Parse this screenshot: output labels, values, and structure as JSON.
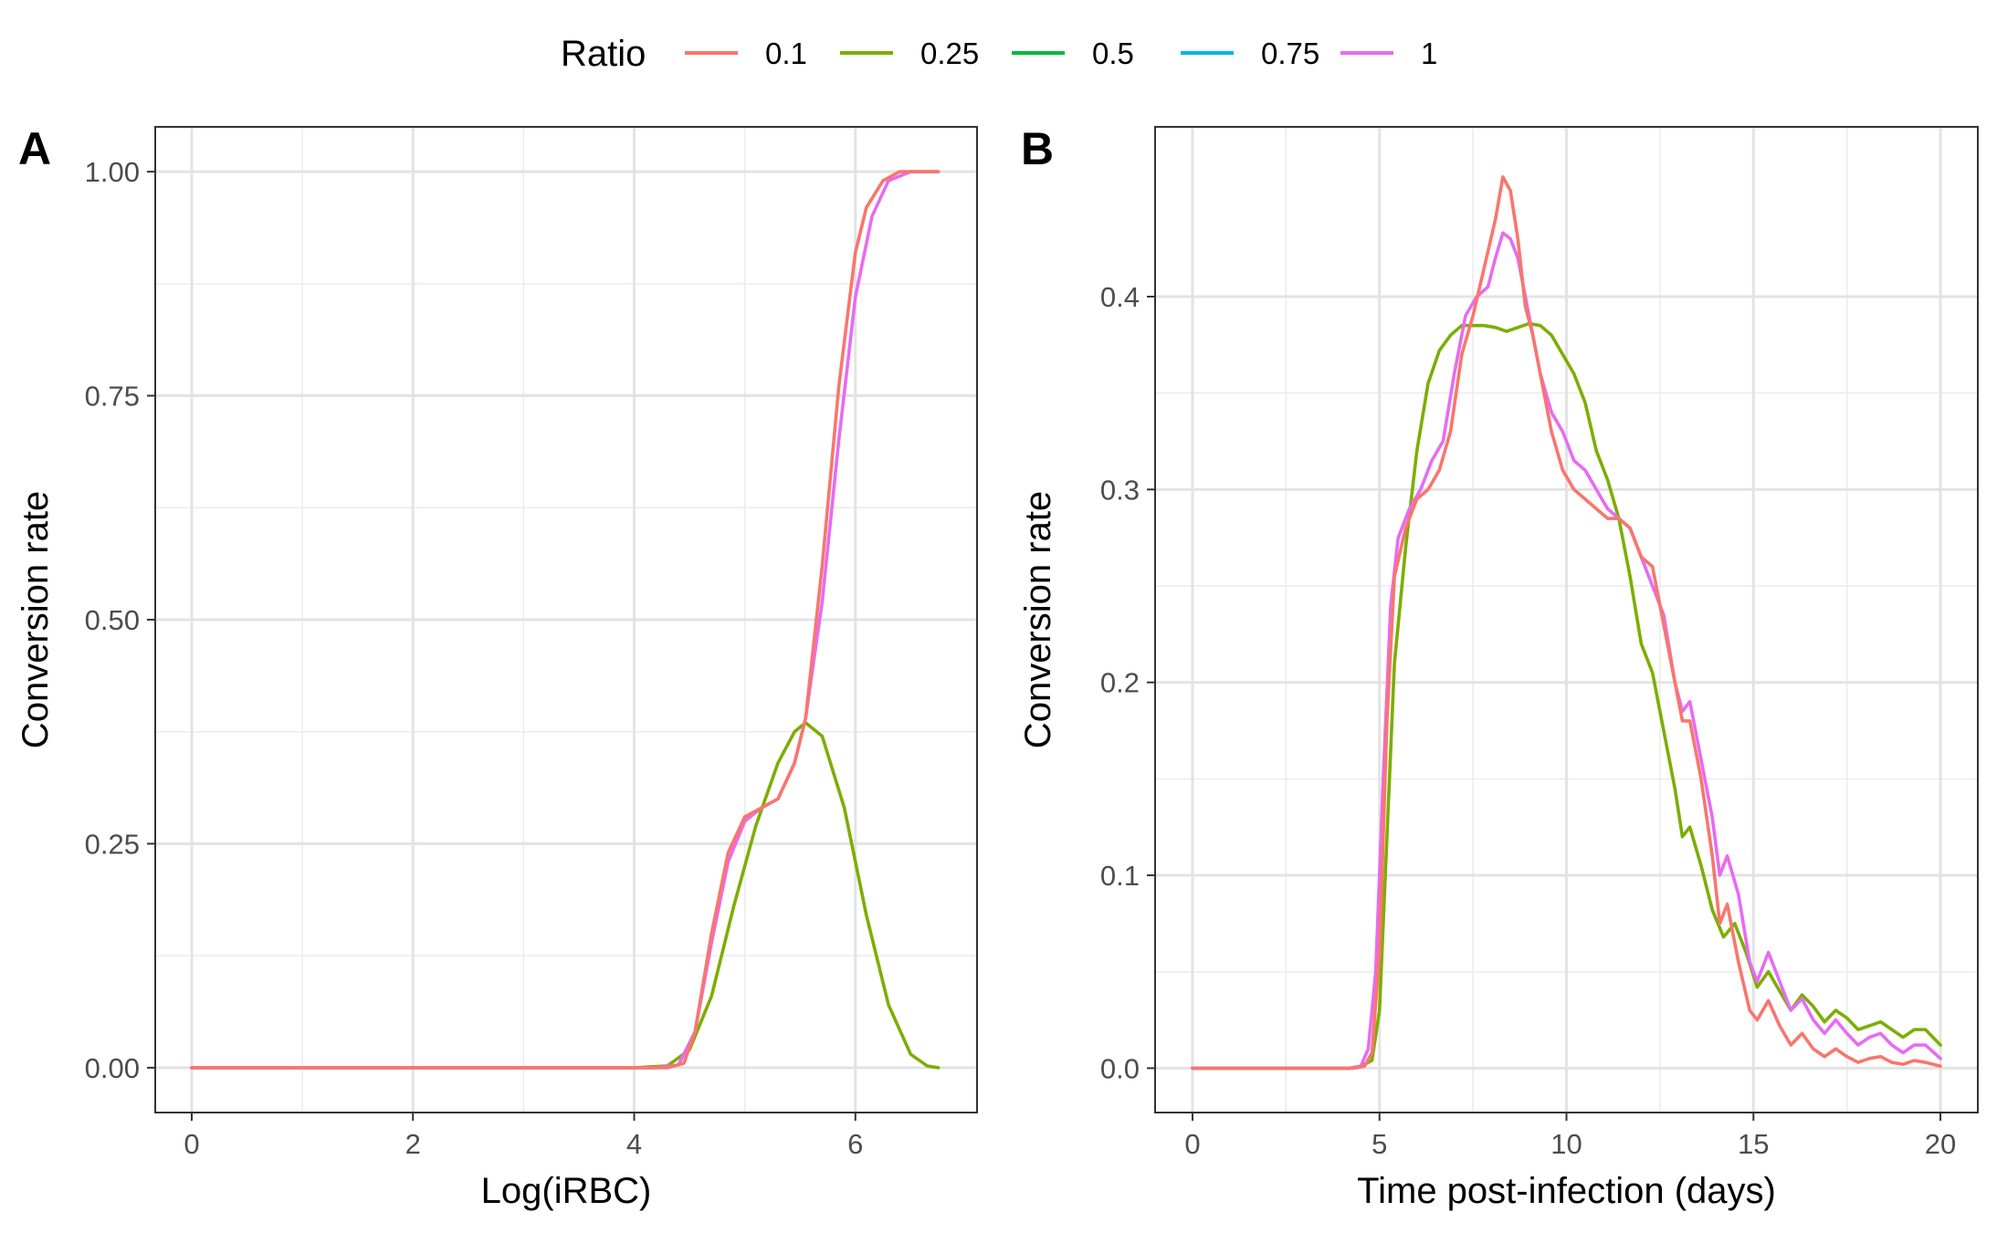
{
  "legend": {
    "title": "Ratio",
    "entries": [
      {
        "label": "0.1",
        "color": "#F8766D"
      },
      {
        "label": "0.25",
        "color": "#7CAE00"
      },
      {
        "label": "0.5",
        "color": "#00BA38"
      },
      {
        "label": "0.75",
        "color": "#00B4EF"
      },
      {
        "label": "1",
        "color": "#E76BF3"
      }
    ]
  },
  "chart_data": [
    {
      "type": "line",
      "panel": "A",
      "title": "",
      "xlabel": "Log(iRBC)",
      "ylabel": "Conversion rate",
      "xlim": [
        -0.33,
        7.1
      ],
      "ylim": [
        -0.05,
        1.05
      ],
      "xticks": [
        0,
        2,
        4,
        6
      ],
      "xtick_labels": [
        "0",
        "2",
        "4",
        "6"
      ],
      "yticks": [
        0,
        0.25,
        0.5,
        0.75,
        1
      ],
      "ytick_labels": [
        "0.00",
        "0.25",
        "0.50",
        "0.75",
        "1.00"
      ],
      "grid": true,
      "series": [
        {
          "name": "0.25",
          "color": "#7CAE00",
          "points": [
            [
              0,
              0
            ],
            [
              4.0,
              0
            ],
            [
              4.3,
              0.002
            ],
            [
              4.5,
              0.02
            ],
            [
              4.7,
              0.08
            ],
            [
              4.9,
              0.18
            ],
            [
              5.1,
              0.27
            ],
            [
              5.3,
              0.34
            ],
            [
              5.45,
              0.375
            ],
            [
              5.55,
              0.385
            ],
            [
              5.7,
              0.37
            ],
            [
              5.9,
              0.29
            ],
            [
              6.1,
              0.17
            ],
            [
              6.3,
              0.07
            ],
            [
              6.5,
              0.015
            ],
            [
              6.65,
              0.002
            ],
            [
              6.75,
              0
            ]
          ]
        },
        {
          "name": "1",
          "color": "#E76BF3",
          "points": [
            [
              0,
              0
            ],
            [
              4.2,
              0
            ],
            [
              4.4,
              0.003
            ],
            [
              4.55,
              0.04
            ],
            [
              4.7,
              0.14
            ],
            [
              4.85,
              0.23
            ],
            [
              5.0,
              0.275
            ],
            [
              5.15,
              0.29
            ],
            [
              5.3,
              0.3
            ],
            [
              5.45,
              0.34
            ],
            [
              5.55,
              0.39
            ],
            [
              5.7,
              0.52
            ],
            [
              5.85,
              0.7
            ],
            [
              6.0,
              0.86
            ],
            [
              6.15,
              0.95
            ],
            [
              6.3,
              0.99
            ],
            [
              6.5,
              1.0
            ],
            [
              6.75,
              1.0
            ]
          ]
        },
        {
          "name": "0.1",
          "color": "#F8766D",
          "points": [
            [
              0,
              0
            ],
            [
              4.3,
              0
            ],
            [
              4.45,
              0.005
            ],
            [
              4.55,
              0.04
            ],
            [
              4.7,
              0.15
            ],
            [
              4.85,
              0.24
            ],
            [
              5.0,
              0.28
            ],
            [
              5.15,
              0.29
            ],
            [
              5.3,
              0.3
            ],
            [
              5.45,
              0.34
            ],
            [
              5.55,
              0.39
            ],
            [
              5.7,
              0.56
            ],
            [
              5.85,
              0.76
            ],
            [
              6.0,
              0.91
            ],
            [
              6.1,
              0.96
            ],
            [
              6.25,
              0.99
            ],
            [
              6.4,
              1.0
            ],
            [
              6.75,
              1.0
            ]
          ]
        }
      ]
    },
    {
      "type": "line",
      "panel": "B",
      "title": "",
      "xlabel": "Time post-infection (days)",
      "ylabel": "Conversion rate",
      "xlim": [
        -1,
        21
      ],
      "ylim": [
        -0.023,
        0.488
      ],
      "xticks": [
        0,
        5,
        10,
        15,
        20
      ],
      "xtick_labels": [
        "0",
        "5",
        "10",
        "15",
        "20"
      ],
      "yticks": [
        0,
        0.1,
        0.2,
        0.3,
        0.4
      ],
      "ytick_labels": [
        "0.0",
        "0.1",
        "0.2",
        "0.3",
        "0.4"
      ],
      "grid": true,
      "series": [
        {
          "name": "0.25",
          "color": "#7CAE00",
          "points": [
            [
              0,
              0
            ],
            [
              4.2,
              0
            ],
            [
              4.5,
              0.001
            ],
            [
              4.8,
              0.004
            ],
            [
              5.0,
              0.03
            ],
            [
              5.2,
              0.12
            ],
            [
              5.4,
              0.21
            ],
            [
              5.7,
              0.27
            ],
            [
              6.0,
              0.32
            ],
            [
              6.3,
              0.355
            ],
            [
              6.6,
              0.372
            ],
            [
              6.9,
              0.38
            ],
            [
              7.2,
              0.385
            ],
            [
              7.5,
              0.385
            ],
            [
              7.8,
              0.385
            ],
            [
              8.1,
              0.384
            ],
            [
              8.4,
              0.382
            ],
            [
              8.7,
              0.384
            ],
            [
              9.0,
              0.386
            ],
            [
              9.3,
              0.385
            ],
            [
              9.6,
              0.38
            ],
            [
              9.9,
              0.37
            ],
            [
              10.2,
              0.36
            ],
            [
              10.5,
              0.345
            ],
            [
              10.8,
              0.32
            ],
            [
              11.1,
              0.305
            ],
            [
              11.4,
              0.285
            ],
            [
              11.7,
              0.255
            ],
            [
              12.0,
              0.22
            ],
            [
              12.3,
              0.205
            ],
            [
              12.6,
              0.175
            ],
            [
              12.9,
              0.145
            ],
            [
              13.1,
              0.12
            ],
            [
              13.3,
              0.125
            ],
            [
              13.6,
              0.105
            ],
            [
              13.9,
              0.082
            ],
            [
              14.2,
              0.068
            ],
            [
              14.5,
              0.075
            ],
            [
              14.8,
              0.06
            ],
            [
              15.1,
              0.042
            ],
            [
              15.4,
              0.05
            ],
            [
              15.7,
              0.04
            ],
            [
              16.0,
              0.03
            ],
            [
              16.3,
              0.038
            ],
            [
              16.6,
              0.032
            ],
            [
              16.9,
              0.024
            ],
            [
              17.2,
              0.03
            ],
            [
              17.5,
              0.026
            ],
            [
              17.8,
              0.02
            ],
            [
              18.1,
              0.022
            ],
            [
              18.4,
              0.024
            ],
            [
              18.7,
              0.02
            ],
            [
              19.0,
              0.016
            ],
            [
              19.3,
              0.02
            ],
            [
              19.6,
              0.02
            ],
            [
              20.0,
              0.012
            ]
          ]
        },
        {
          "name": "1",
          "color": "#E76BF3",
          "points": [
            [
              0,
              0
            ],
            [
              4.2,
              0
            ],
            [
              4.5,
              0.001
            ],
            [
              4.7,
              0.01
            ],
            [
              4.9,
              0.05
            ],
            [
              5.1,
              0.15
            ],
            [
              5.3,
              0.24
            ],
            [
              5.5,
              0.275
            ],
            [
              5.8,
              0.29
            ],
            [
              6.1,
              0.3
            ],
            [
              6.4,
              0.315
            ],
            [
              6.7,
              0.325
            ],
            [
              7.0,
              0.36
            ],
            [
              7.3,
              0.39
            ],
            [
              7.6,
              0.4
            ],
            [
              7.9,
              0.405
            ],
            [
              8.1,
              0.42
            ],
            [
              8.3,
              0.433
            ],
            [
              8.5,
              0.43
            ],
            [
              8.7,
              0.42
            ],
            [
              8.9,
              0.4
            ],
            [
              9.1,
              0.38
            ],
            [
              9.3,
              0.36
            ],
            [
              9.6,
              0.34
            ],
            [
              9.9,
              0.33
            ],
            [
              10.2,
              0.315
            ],
            [
              10.5,
              0.31
            ],
            [
              10.8,
              0.3
            ],
            [
              11.1,
              0.29
            ],
            [
              11.4,
              0.285
            ],
            [
              11.7,
              0.28
            ],
            [
              12.0,
              0.265
            ],
            [
              12.3,
              0.25
            ],
            [
              12.6,
              0.235
            ],
            [
              12.9,
              0.2
            ],
            [
              13.1,
              0.185
            ],
            [
              13.3,
              0.19
            ],
            [
              13.6,
              0.16
            ],
            [
              13.9,
              0.13
            ],
            [
              14.1,
              0.1
            ],
            [
              14.3,
              0.11
            ],
            [
              14.6,
              0.09
            ],
            [
              14.9,
              0.055
            ],
            [
              15.1,
              0.045
            ],
            [
              15.4,
              0.06
            ],
            [
              15.7,
              0.045
            ],
            [
              16.0,
              0.03
            ],
            [
              16.3,
              0.036
            ],
            [
              16.6,
              0.025
            ],
            [
              16.9,
              0.018
            ],
            [
              17.2,
              0.025
            ],
            [
              17.5,
              0.018
            ],
            [
              17.8,
              0.012
            ],
            [
              18.1,
              0.016
            ],
            [
              18.4,
              0.018
            ],
            [
              18.7,
              0.012
            ],
            [
              19.0,
              0.008
            ],
            [
              19.3,
              0.012
            ],
            [
              19.6,
              0.012
            ],
            [
              20.0,
              0.005
            ]
          ]
        },
        {
          "name": "0.1",
          "color": "#F8766D",
          "points": [
            [
              0,
              0
            ],
            [
              4.3,
              0
            ],
            [
              4.6,
              0.001
            ],
            [
              4.8,
              0.008
            ],
            [
              5.0,
              0.06
            ],
            [
              5.2,
              0.18
            ],
            [
              5.4,
              0.255
            ],
            [
              5.7,
              0.28
            ],
            [
              6.0,
              0.295
            ],
            [
              6.3,
              0.3
            ],
            [
              6.6,
              0.31
            ],
            [
              6.9,
              0.33
            ],
            [
              7.2,
              0.37
            ],
            [
              7.5,
              0.39
            ],
            [
              7.8,
              0.415
            ],
            [
              8.1,
              0.44
            ],
            [
              8.3,
              0.462
            ],
            [
              8.5,
              0.455
            ],
            [
              8.7,
              0.43
            ],
            [
              8.9,
              0.395
            ],
            [
              9.1,
              0.38
            ],
            [
              9.3,
              0.36
            ],
            [
              9.6,
              0.33
            ],
            [
              9.9,
              0.31
            ],
            [
              10.2,
              0.3
            ],
            [
              10.5,
              0.295
            ],
            [
              10.8,
              0.29
            ],
            [
              11.1,
              0.285
            ],
            [
              11.4,
              0.285
            ],
            [
              11.7,
              0.28
            ],
            [
              12.0,
              0.265
            ],
            [
              12.3,
              0.26
            ],
            [
              12.6,
              0.23
            ],
            [
              12.9,
              0.2
            ],
            [
              13.1,
              0.18
            ],
            [
              13.3,
              0.18
            ],
            [
              13.6,
              0.15
            ],
            [
              13.9,
              0.11
            ],
            [
              14.1,
              0.075
            ],
            [
              14.3,
              0.085
            ],
            [
              14.6,
              0.055
            ],
            [
              14.9,
              0.03
            ],
            [
              15.1,
              0.025
            ],
            [
              15.4,
              0.035
            ],
            [
              15.7,
              0.022
            ],
            [
              16.0,
              0.012
            ],
            [
              16.3,
              0.018
            ],
            [
              16.6,
              0.01
            ],
            [
              16.9,
              0.006
            ],
            [
              17.2,
              0.01
            ],
            [
              17.5,
              0.006
            ],
            [
              17.8,
              0.003
            ],
            [
              18.1,
              0.005
            ],
            [
              18.4,
              0.006
            ],
            [
              18.7,
              0.003
            ],
            [
              19.0,
              0.002
            ],
            [
              19.3,
              0.004
            ],
            [
              19.6,
              0.003
            ],
            [
              20.0,
              0.001
            ]
          ]
        }
      ]
    }
  ]
}
